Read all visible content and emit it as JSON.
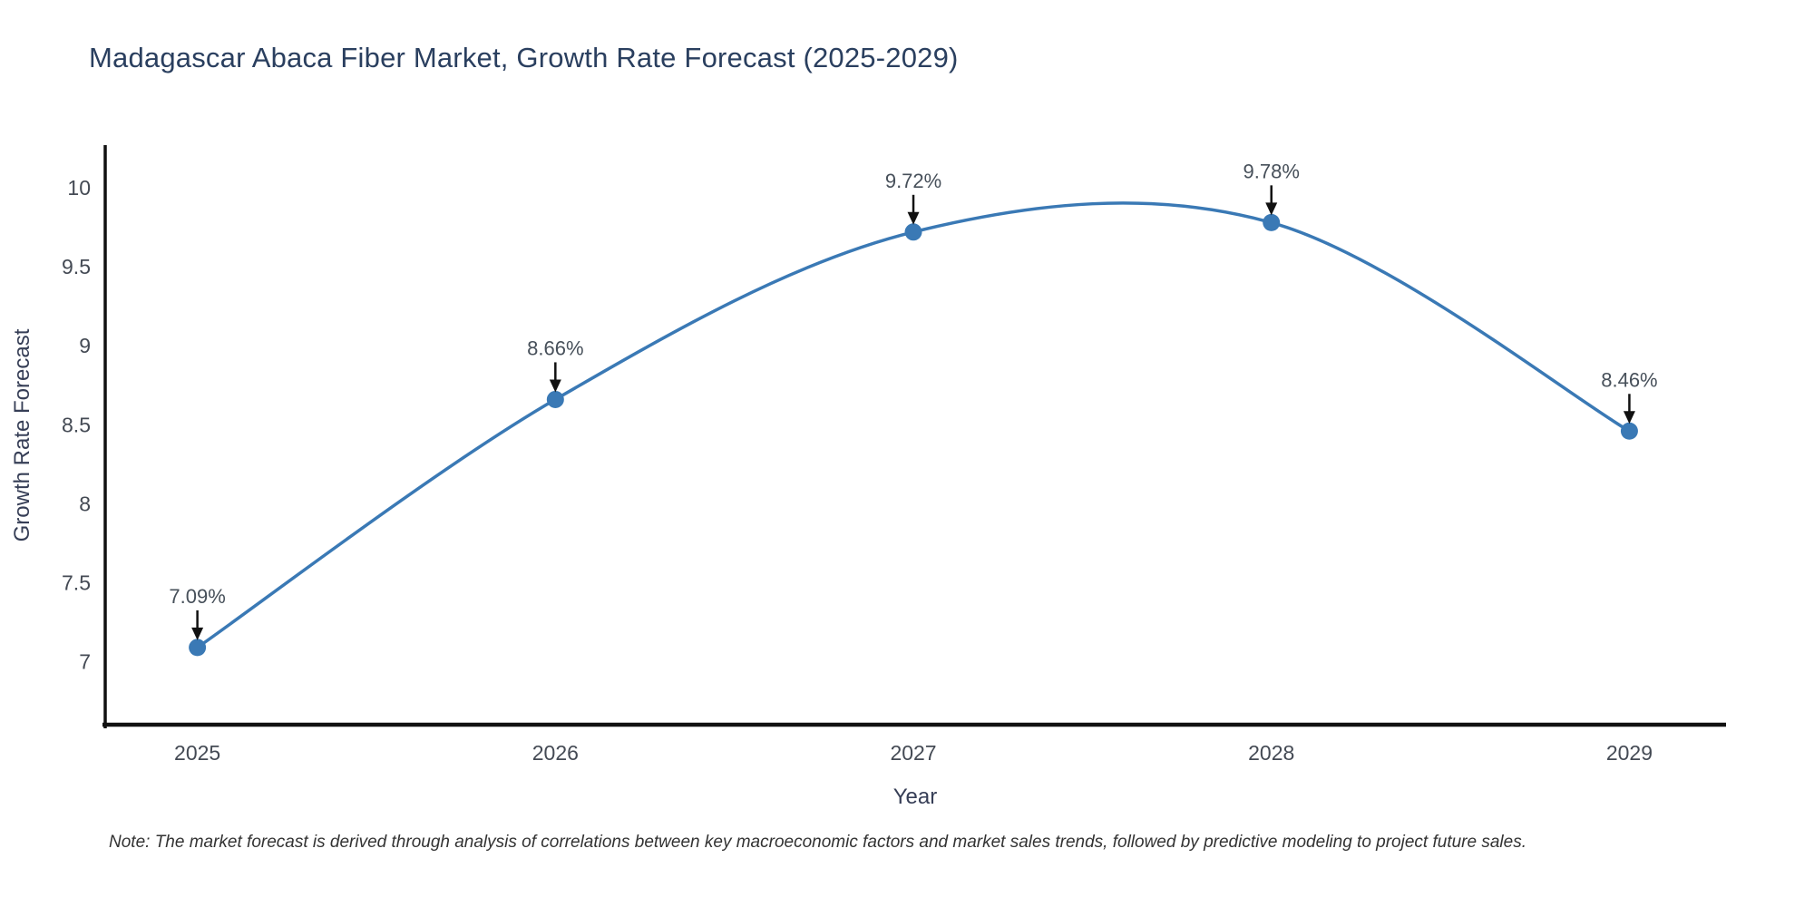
{
  "note": "Note: The market forecast is derived through analysis of correlations between key macroeconomic factors and market sales trends, followed by predictive modeling to project future sales.",
  "chart_data": {
    "type": "line",
    "title": "Madagascar Abaca Fiber Market, Growth Rate Forecast (2025-2029)",
    "xlabel": "Year",
    "ylabel": "Growth Rate Forecast",
    "x": [
      2025,
      2026,
      2027,
      2028,
      2029
    ],
    "values": [
      7.09,
      8.66,
      9.72,
      9.78,
      8.46
    ],
    "point_labels": [
      "7.09%",
      "8.66%",
      "9.72%",
      "9.78%",
      "8.46%"
    ],
    "xtick_labels": [
      "2025",
      "2026",
      "2027",
      "2028",
      "2029"
    ],
    "ytick_values": [
      7,
      7.5,
      8,
      8.5,
      9,
      9.5,
      10
    ],
    "ytick_labels": [
      "7",
      "7.5",
      "8",
      "8.5",
      "9",
      "9.5",
      "10"
    ],
    "xlim": [
      2024.74,
      2029.27
    ],
    "ylim": [
      6.59,
      10.27
    ],
    "line_shape": "spline",
    "grid": false,
    "legend": "none",
    "annotations_have_arrows": true,
    "colors": {
      "line": "#3a79b5",
      "marker": "#3a79b5",
      "axis_line": "#111111",
      "tick_label": "#444a54",
      "annotation_text": "#47505a",
      "arrow": "#111111",
      "title": "#2a3f5f",
      "axis_title": "#363e56",
      "note": "#333333",
      "background": "#ffffff"
    }
  }
}
